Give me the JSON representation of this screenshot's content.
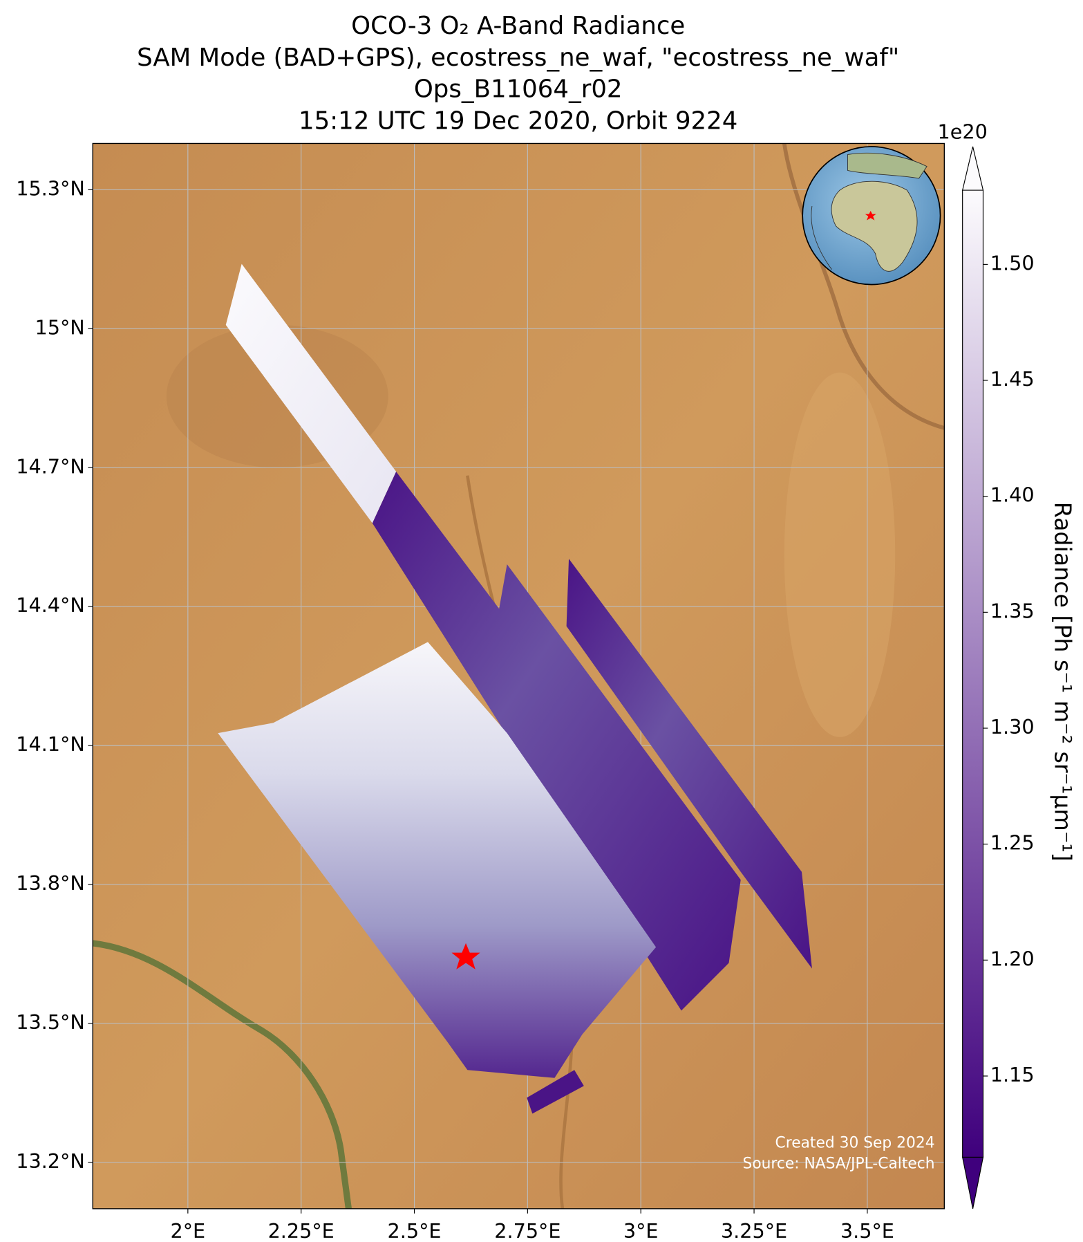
{
  "chart_data": {
    "type": "map",
    "title": [
      "OCO-3 O₂ A-Band Radiance",
      "SAM Mode (BAD+GPS), ecostress_ne_waf, \"ecostress_ne_waf\"",
      "Ops_B11064_r02",
      "15:12 UTC 19 Dec 2020, Orbit 9224"
    ],
    "xlim": [
      1.79,
      3.67
    ],
    "xticks": [
      {
        "value": 2,
        "label": "2°E"
      },
      {
        "value": 2.25,
        "label": "2.25°E"
      },
      {
        "value": 2.5,
        "label": "2.5°E"
      },
      {
        "value": 2.75,
        "label": "2.75°E"
      },
      {
        "value": 3,
        "label": "3°E"
      },
      {
        "value": 3.25,
        "label": "3.25°E"
      },
      {
        "value": 3.5,
        "label": "3.5°E"
      }
    ],
    "ylim": [
      13.1,
      15.4
    ],
    "yticks": [
      {
        "value": 13.2,
        "label": "13.2°N"
      },
      {
        "value": 13.5,
        "label": "13.5°N"
      },
      {
        "value": 13.8,
        "label": "13.8°N"
      },
      {
        "value": 14.1,
        "label": "14.1°N"
      },
      {
        "value": 14.4,
        "label": "14.4°N"
      },
      {
        "value": 14.7,
        "label": "14.7°N"
      },
      {
        "value": 15,
        "label": "15°N"
      },
      {
        "value": 15.3,
        "label": "15.3°N"
      }
    ],
    "grid": true,
    "colorbar": {
      "label": "Radiance [Ph s⁻¹ m⁻² sr⁻¹μm⁻¹]",
      "multiplier": "1e20",
      "lim": [
        1.115,
        1.532
      ],
      "ticks": [
        1.15,
        {
          "value": 1.2,
          "label": "1.20"
        },
        1.25,
        {
          "value": 1.3,
          "label": "1.30"
        },
        1.35,
        {
          "value": 1.4,
          "label": "1.40"
        },
        1.45,
        {
          "value": 1.5,
          "label": "1.50"
        }
      ],
      "colors": [
        "#3f007d",
        "#fcfbfd"
      ]
    },
    "annotations": [
      "Created 30 Sep 2024",
      "Source: NASA/JPL-Caltech"
    ]
  }
}
